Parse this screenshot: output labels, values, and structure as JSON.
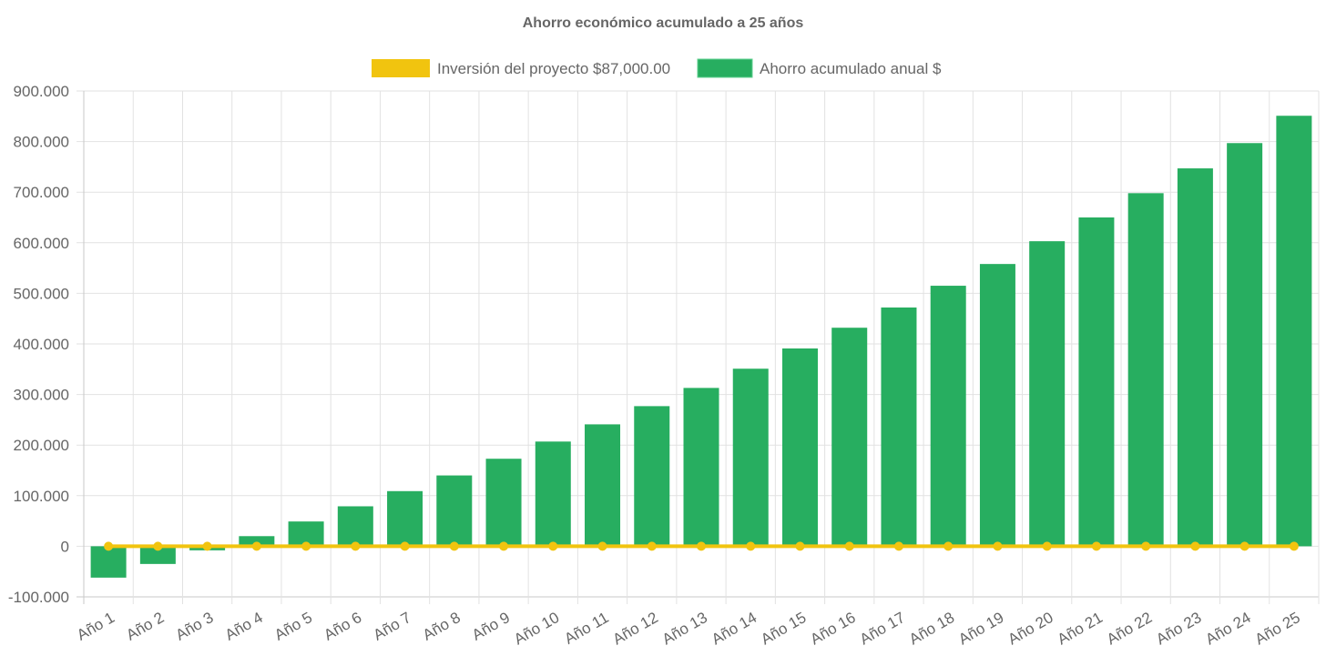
{
  "chart_data": {
    "type": "bar",
    "title": "Ahorro económico acumulado a 25 años",
    "legend_position": "top",
    "grid": true,
    "xlabel": "",
    "ylabel": "",
    "ylim": [
      -100000,
      900000
    ],
    "y_ticks": [
      "900.000",
      "800.000",
      "700.000",
      "600.000",
      "500.000",
      "400.000",
      "300.000",
      "200.000",
      "100.000",
      "0",
      "-100.000"
    ],
    "categories": [
      "Año 1",
      "Año 2",
      "Año 3",
      "Año 4",
      "Año 5",
      "Año 6",
      "Año 7",
      "Año 8",
      "Año 9",
      "Año 10",
      "Año 11",
      "Año 12",
      "Año 13",
      "Año 14",
      "Año 15",
      "Año 16",
      "Año 17",
      "Año 18",
      "Año 19",
      "Año 20",
      "Año 21",
      "Año 22",
      "Año 23",
      "Año 24",
      "Año 25"
    ],
    "series": [
      {
        "name": "Inversión del proyecto $87,000.00",
        "type": "line",
        "color": "#f1c40f",
        "values": [
          0,
          0,
          0,
          0,
          0,
          0,
          0,
          0,
          0,
          0,
          0,
          0,
          0,
          0,
          0,
          0,
          0,
          0,
          0,
          0,
          0,
          0,
          0,
          0,
          0
        ]
      },
      {
        "name": "Ahorro acumulado anual $",
        "type": "bar",
        "color": "#27ae60",
        "values": [
          -62000,
          -35000,
          -8000,
          20000,
          49000,
          79000,
          109000,
          140000,
          173000,
          207000,
          241000,
          277000,
          313000,
          351000,
          391000,
          432000,
          472000,
          515000,
          558000,
          603000,
          650000,
          698000,
          747000,
          797000,
          851000
        ]
      }
    ]
  }
}
